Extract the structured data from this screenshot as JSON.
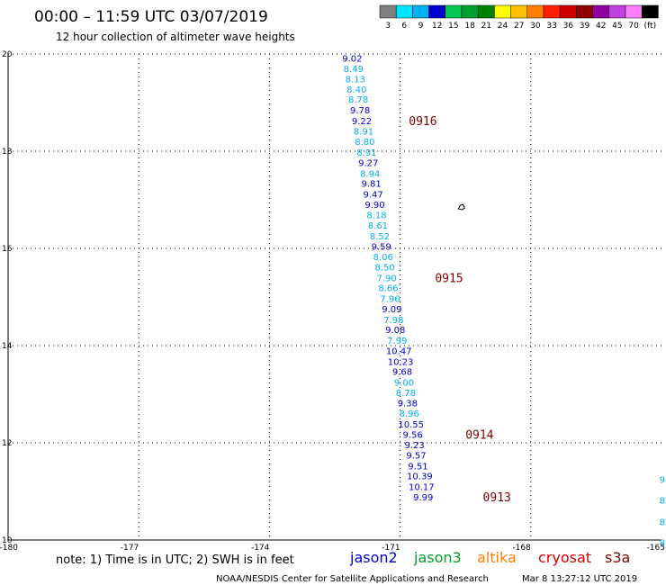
{
  "header": {
    "title": "00:00 – 11:59 UTC 03/07/2019",
    "subtitle": "12 hour collection of altimeter wave heights"
  },
  "colorbar": {
    "labels": [
      "3",
      "6",
      "9",
      "12",
      "15",
      "18",
      "21",
      "24",
      "27",
      "30",
      "33",
      "36",
      "39",
      "42",
      "45",
      "70",
      "(ft)"
    ],
    "colors": [
      "#7f7f7f",
      "#00e5ff",
      "#00b0f0",
      "#0000d0",
      "#00c850",
      "#00a030",
      "#008000",
      "#ffff00",
      "#ffc000",
      "#ff8000",
      "#ff2000",
      "#d00000",
      "#900000",
      "#9000a0",
      "#c040e0",
      "#ff80ff",
      "#000000"
    ]
  },
  "notes": {
    "note_text": "note:  1) Time is in UTC;  2) SWH is in feet",
    "credit": "NOAA/NESDIS Center for Satellite Applications and Research",
    "timestamp": "Mar  8 13:27:12 UTC 2019"
  },
  "satellites": [
    {
      "name": "jason2",
      "color": "#0000d0"
    },
    {
      "name": "jason3",
      "color": "#00a030"
    },
    {
      "name": "altika",
      "color": "#ff8000"
    },
    {
      "name": "cryosat",
      "color": "#d00000"
    },
    {
      "name": "s3a",
      "color": "#800000"
    }
  ],
  "chart_data": {
    "type": "scatter",
    "title": "00:00 – 11:59 UTC 03/07/2019",
    "subtitle": "12 hour collection of altimeter wave heights",
    "xlim": [
      -180,
      -165
    ],
    "ylim": [
      10,
      20
    ],
    "x_ticks": [
      "-180",
      "-177",
      "-174",
      "-171",
      "-168",
      "-165"
    ],
    "y_ticks": [
      "10",
      "12",
      "14",
      "16",
      "18",
      "20"
    ],
    "grid": true,
    "points": [
      {
        "lon": -172.1,
        "lat": 19.92,
        "label": "9.02",
        "color": "#0000d0"
      },
      {
        "lon": -172.07,
        "lat": 19.7,
        "label": "8.49",
        "color": "#00b0f0"
      },
      {
        "lon": -172.03,
        "lat": 19.49,
        "label": "8.13",
        "color": "#00b0f0"
      },
      {
        "lon": -172.0,
        "lat": 19.28,
        "label": "8.40",
        "color": "#00b0f0"
      },
      {
        "lon": -171.96,
        "lat": 19.07,
        "label": "8.78",
        "color": "#00b0f0"
      },
      {
        "lon": -171.92,
        "lat": 18.85,
        "label": "9.78",
        "color": "#0000d0"
      },
      {
        "lon": -171.88,
        "lat": 18.63,
        "label": "9.22",
        "color": "#0000d0"
      },
      {
        "lon": -171.84,
        "lat": 18.42,
        "label": "8.91",
        "color": "#00b0f0"
      },
      {
        "lon": -171.81,
        "lat": 18.2,
        "label": "8.80",
        "color": "#00b0f0"
      },
      {
        "lon": -171.77,
        "lat": 17.98,
        "label": "8.91",
        "color": "#00b0f0"
      },
      {
        "lon": -171.73,
        "lat": 17.77,
        "label": "9.27",
        "color": "#0000d0"
      },
      {
        "lon": -171.69,
        "lat": 17.55,
        "label": "8.94",
        "color": "#00b0f0"
      },
      {
        "lon": -171.66,
        "lat": 17.34,
        "label": "9.81",
        "color": "#0000d0"
      },
      {
        "lon": -171.62,
        "lat": 17.12,
        "label": "9.47",
        "color": "#0000d0"
      },
      {
        "lon": -171.58,
        "lat": 16.91,
        "label": "9.90",
        "color": "#0000d0"
      },
      {
        "lon": -171.54,
        "lat": 16.69,
        "label": "8.18",
        "color": "#00b0f0"
      },
      {
        "lon": -171.51,
        "lat": 16.48,
        "label": "8.61",
        "color": "#00b0f0"
      },
      {
        "lon": -171.47,
        "lat": 16.26,
        "label": "8.52",
        "color": "#00b0f0"
      },
      {
        "lon": -171.43,
        "lat": 16.05,
        "label": "9.59",
        "color": "#0000d0"
      },
      {
        "lon": -171.39,
        "lat": 15.83,
        "label": "8.06",
        "color": "#00b0f0"
      },
      {
        "lon": -171.35,
        "lat": 15.62,
        "label": "8.50",
        "color": "#00b0f0"
      },
      {
        "lon": -171.31,
        "lat": 15.4,
        "label": "7.90",
        "color": "#00b0f0"
      },
      {
        "lon": -171.27,
        "lat": 15.19,
        "label": "8.66",
        "color": "#00b0f0"
      },
      {
        "lon": -171.23,
        "lat": 14.97,
        "label": "7.96",
        "color": "#00b0f0"
      },
      {
        "lon": -171.19,
        "lat": 14.76,
        "label": "9.09",
        "color": "#0000d0"
      },
      {
        "lon": -171.15,
        "lat": 14.54,
        "label": "7.98",
        "color": "#00b0f0"
      },
      {
        "lon": -171.11,
        "lat": 14.33,
        "label": "9.08",
        "color": "#0000d0"
      },
      {
        "lon": -171.07,
        "lat": 14.11,
        "label": "7.99",
        "color": "#00b0f0"
      },
      {
        "lon": -171.03,
        "lat": 13.9,
        "label": "10.47",
        "color": "#0000d0"
      },
      {
        "lon": -170.99,
        "lat": 13.68,
        "label": "10.23",
        "color": "#0000d0"
      },
      {
        "lon": -170.95,
        "lat": 13.47,
        "label": "9.68",
        "color": "#0000d0"
      },
      {
        "lon": -170.91,
        "lat": 13.25,
        "label": "9.00",
        "color": "#00b0f0"
      },
      {
        "lon": -170.87,
        "lat": 13.04,
        "label": "8.78",
        "color": "#00b0f0"
      },
      {
        "lon": -170.83,
        "lat": 12.82,
        "label": "9.38",
        "color": "#0000d0"
      },
      {
        "lon": -170.79,
        "lat": 12.61,
        "label": "8.96",
        "color": "#00b0f0"
      },
      {
        "lon": -170.75,
        "lat": 12.39,
        "label": "10.55",
        "color": "#0000d0"
      },
      {
        "lon": -170.71,
        "lat": 12.18,
        "label": "9.56",
        "color": "#0000d0"
      },
      {
        "lon": -170.67,
        "lat": 11.96,
        "label": "9.23",
        "color": "#0000d0"
      },
      {
        "lon": -170.63,
        "lat": 11.75,
        "label": "9.57",
        "color": "#0000d0"
      },
      {
        "lon": -170.59,
        "lat": 11.53,
        "label": "9.51",
        "color": "#0000d0"
      },
      {
        "lon": -170.55,
        "lat": 11.32,
        "label": "10.39",
        "color": "#0000d0"
      },
      {
        "lon": -170.51,
        "lat": 11.1,
        "label": "10.17",
        "color": "#0000d0"
      },
      {
        "lon": -170.47,
        "lat": 10.89,
        "label": "9.99",
        "color": "#0000d0"
      }
    ],
    "pass_labels": [
      {
        "lon": -170.8,
        "lat": 18.63,
        "label": "0916"
      },
      {
        "lon": -170.2,
        "lat": 15.4,
        "label": "0915"
      },
      {
        "lon": -169.5,
        "lat": 12.18,
        "label": "0914"
      },
      {
        "lon": -169.1,
        "lat": 10.89,
        "label": "0913"
      }
    ],
    "edge_points": [
      {
        "lon": -165.05,
        "lat": 11.25,
        "label": "9",
        "color": "#00b0f0"
      },
      {
        "lon": -165.05,
        "lat": 10.82,
        "label": "8",
        "color": "#00b0f0"
      },
      {
        "lon": -165.05,
        "lat": 10.38,
        "label": "8",
        "color": "#00b0f0"
      },
      {
        "lon": -165.05,
        "lat": 9.95,
        "label": "8",
        "color": "#00b0f0"
      }
    ],
    "markers": [
      {
        "lon": -169.6,
        "lat": 16.85,
        "label": "island"
      }
    ]
  }
}
